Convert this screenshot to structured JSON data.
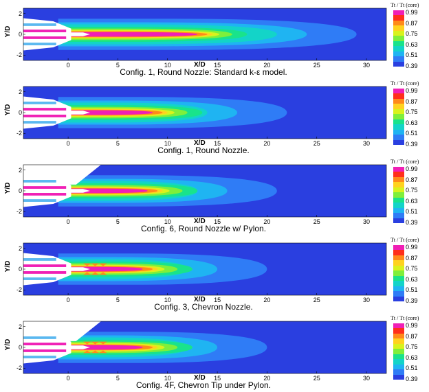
{
  "axis": {
    "ylabel": "Y/D",
    "xlabel": "X/D",
    "yticks": [
      "2",
      "0",
      "-2"
    ],
    "xticks": [
      "0",
      "5",
      "10",
      "15",
      "20",
      "25",
      "30"
    ],
    "xrange": [
      -4.5,
      32
    ],
    "yrange": [
      -2.5,
      2.5
    ]
  },
  "legend": {
    "title": "Tt / Tt (core)",
    "levels": [
      "0.99",
      "0.87",
      "0.75",
      "0.63",
      "0.51",
      "0.39"
    ]
  },
  "colors": {
    "background_field": "#2a3fe0",
    "levels_low_to_high": [
      "#2a3fe0",
      "#2f7cf6",
      "#1fb4f2",
      "#13d4c8",
      "#19e38b",
      "#7fef3b",
      "#d9f21d",
      "#ffd21f",
      "#ff8a1a",
      "#ff2f1b",
      "#f01fb5"
    ],
    "geometry": "#ffffff",
    "nozzle_inner": "#5ab8f0",
    "core": "#f01fb5"
  },
  "panels": [
    {
      "caption": "Config. 1, Round Nozzle: Standard k-ε model.",
      "pylon": false,
      "chevron": false,
      "core_end": 14,
      "plume_len": 25
    },
    {
      "caption": "Config. 1, Round Nozzle.",
      "pylon": false,
      "chevron": false,
      "core_end": 9.5,
      "plume_len": 18
    },
    {
      "caption": "Config. 6, Round Nozzle w/ Pylon.",
      "pylon": true,
      "chevron": false,
      "core_end": 9,
      "plume_len": 17
    },
    {
      "caption": "Config. 3, Chevron Nozzle.",
      "pylon": false,
      "chevron": true,
      "core_end": 8.5,
      "plume_len": 16
    },
    {
      "caption": "Config. 4F, Chevron Tip under Pylon.",
      "pylon": true,
      "chevron": true,
      "core_end": 8.5,
      "plume_len": 16
    }
  ]
}
